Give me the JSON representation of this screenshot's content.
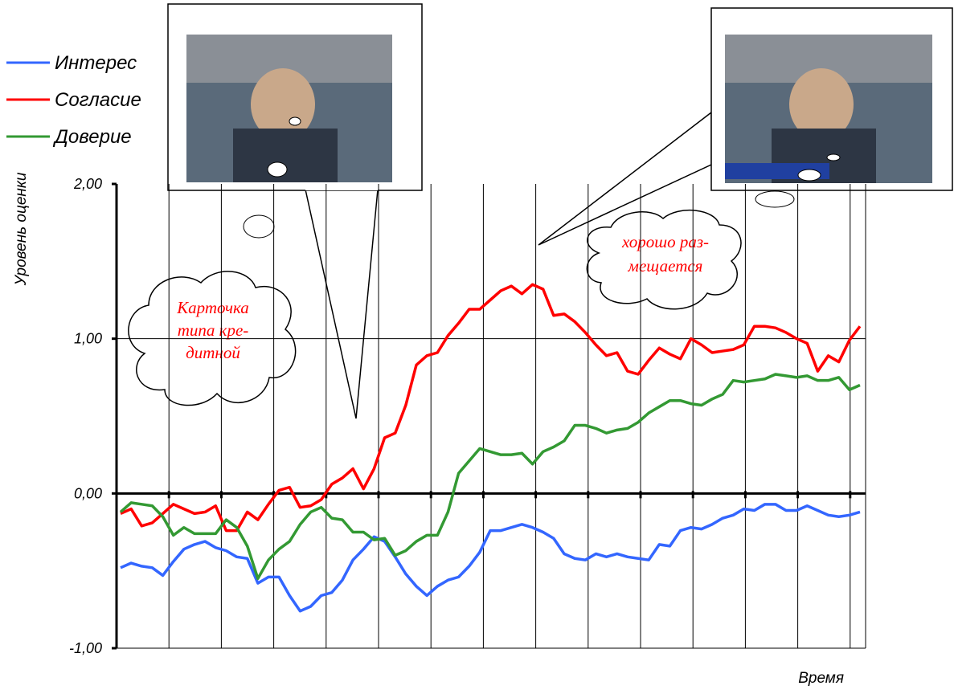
{
  "chart_data": {
    "type": "line",
    "y_label": "Уровень оценки",
    "x_label": "Время",
    "categories": [
      null,
      null,
      null,
      null,
      null,
      null,
      null,
      null,
      null,
      null,
      null,
      null,
      null,
      null,
      null,
      null,
      null,
      null,
      null,
      null,
      null,
      null,
      null,
      null,
      null,
      null,
      null,
      null,
      null,
      null,
      null,
      null,
      null,
      null,
      null,
      null,
      null,
      null,
      null,
      null,
      null,
      null,
      null,
      null,
      null,
      null,
      null,
      null,
      null,
      null,
      null,
      null,
      null,
      null,
      null,
      null,
      null,
      null,
      null,
      null,
      null,
      null,
      null,
      null,
      null,
      null,
      null,
      null,
      null,
      null,
      null
    ],
    "series": [
      {
        "name": "Интерес",
        "color": "#3366ff",
        "values": [
          -0.48,
          -0.45,
          -0.47,
          -0.48,
          -0.53,
          -0.44,
          -0.36,
          -0.33,
          -0.31,
          -0.35,
          -0.37,
          -0.41,
          -0.42,
          -0.58,
          -0.54,
          -0.54,
          -0.66,
          -0.76,
          -0.73,
          -0.66,
          -0.64,
          -0.56,
          -0.43,
          -0.36,
          -0.28,
          -0.31,
          -0.41,
          -0.52,
          -0.6,
          -0.66,
          -0.6,
          -0.56,
          -0.54,
          -0.47,
          -0.38,
          -0.24,
          -0.24,
          -0.22,
          -0.2,
          -0.22,
          -0.25,
          -0.29,
          -0.39,
          -0.42,
          -0.43,
          -0.39,
          -0.41,
          -0.39,
          -0.41,
          -0.42,
          -0.43,
          -0.33,
          -0.34,
          -0.24,
          -0.22,
          -0.23,
          -0.2,
          -0.16,
          -0.14,
          -0.1,
          -0.11,
          -0.07,
          -0.07,
          -0.11,
          -0.11,
          -0.08,
          -0.11,
          -0.14,
          -0.15,
          -0.14,
          -0.12
        ]
      },
      {
        "name": "Согласие",
        "color": "#ff0000",
        "values": [
          -0.13,
          -0.1,
          -0.21,
          -0.19,
          -0.13,
          -0.07,
          -0.1,
          -0.13,
          -0.12,
          -0.08,
          -0.24,
          -0.24,
          -0.12,
          -0.17,
          -0.07,
          0.02,
          0.04,
          -0.09,
          -0.08,
          -0.04,
          0.06,
          0.1,
          0.16,
          0.03,
          0.16,
          0.36,
          0.39,
          0.57,
          0.83,
          0.89,
          0.91,
          1.02,
          1.1,
          1.19,
          1.19,
          1.25,
          1.31,
          1.34,
          1.29,
          1.35,
          1.32,
          1.15,
          1.16,
          1.11,
          1.04,
          0.96,
          0.89,
          0.91,
          0.79,
          0.77,
          0.86,
          0.94,
          0.9,
          0.87,
          1.0,
          0.96,
          0.91,
          0.92,
          0.93,
          0.96,
          1.08,
          1.08,
          1.07,
          1.04,
          1.0,
          0.97,
          0.79,
          0.89,
          0.85,
          0.99,
          1.08
        ]
      },
      {
        "name": "Доверие",
        "color": "#339933",
        "values": [
          -0.12,
          -0.06,
          -0.07,
          -0.08,
          -0.15,
          -0.27,
          -0.22,
          -0.26,
          -0.26,
          -0.26,
          -0.17,
          -0.22,
          -0.34,
          -0.55,
          -0.43,
          -0.36,
          -0.31,
          -0.2,
          -0.12,
          -0.09,
          -0.16,
          -0.17,
          -0.25,
          -0.25,
          -0.3,
          -0.29,
          -0.4,
          -0.37,
          -0.31,
          -0.27,
          -0.27,
          -0.12,
          0.13,
          0.21,
          0.29,
          0.27,
          0.25,
          0.25,
          0.26,
          0.19,
          0.27,
          0.3,
          0.34,
          0.44,
          0.44,
          0.42,
          0.39,
          0.41,
          0.42,
          0.46,
          0.52,
          0.56,
          0.6,
          0.6,
          0.58,
          0.57,
          0.61,
          0.64,
          0.73,
          0.72,
          0.73,
          0.74,
          0.77,
          0.76,
          0.75,
          0.76,
          0.73,
          0.73,
          0.75,
          0.67,
          0.7
        ]
      }
    ],
    "ylim": [
      -1,
      2
    ],
    "yticks": [
      {
        "value": -1,
        "label": "-1,00"
      },
      {
        "value": 0,
        "label": "0,00"
      },
      {
        "value": 1,
        "label": "1,00"
      },
      {
        "value": 2,
        "label": "2,00"
      }
    ],
    "grid": true,
    "legend": "top-left",
    "annotations": [
      {
        "lines": [
          "Карточка",
          "типа кре-",
          "дитной"
        ]
      },
      {
        "lines": [
          "хорошо раз-",
          "мещается"
        ]
      }
    ]
  }
}
